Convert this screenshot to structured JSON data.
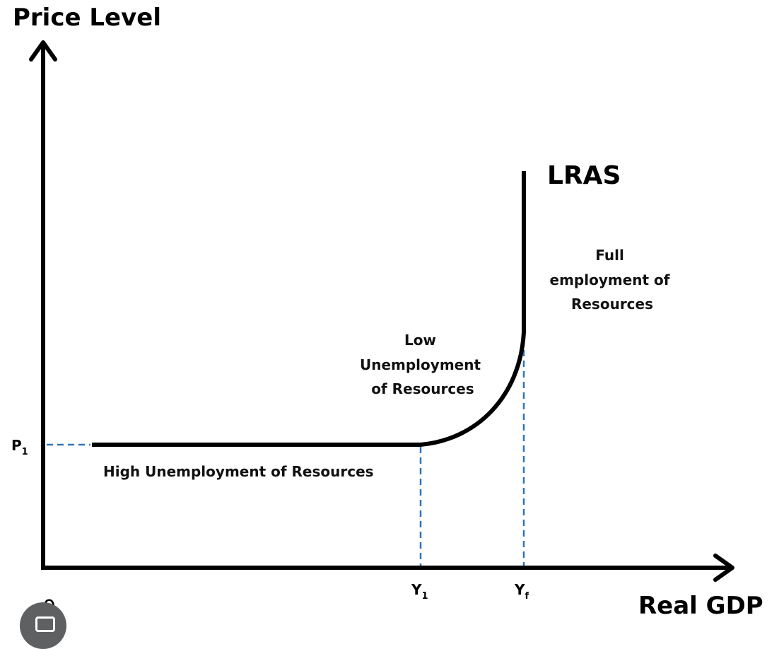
{
  "axes": {
    "y_title": "Price Level",
    "x_title": "Real GDP",
    "origin": "0"
  },
  "curve": {
    "label": "LRAS"
  },
  "ticks": {
    "p1": {
      "main": "P",
      "sub": "1"
    },
    "y1": {
      "main": "Y",
      "sub": "1"
    },
    "yf": {
      "main": "Y",
      "sub": "f"
    }
  },
  "regions": {
    "high": "High Unemployment of Resources",
    "low": [
      "Low",
      "Unemployment",
      "of Resources"
    ],
    "full": [
      "Full",
      "employment of",
      "Resources"
    ]
  },
  "colors": {
    "axis": "#000000",
    "guide": "#2e74c0",
    "badge": "#5f6062"
  },
  "icons": {
    "badge": "image-search-icon"
  }
}
